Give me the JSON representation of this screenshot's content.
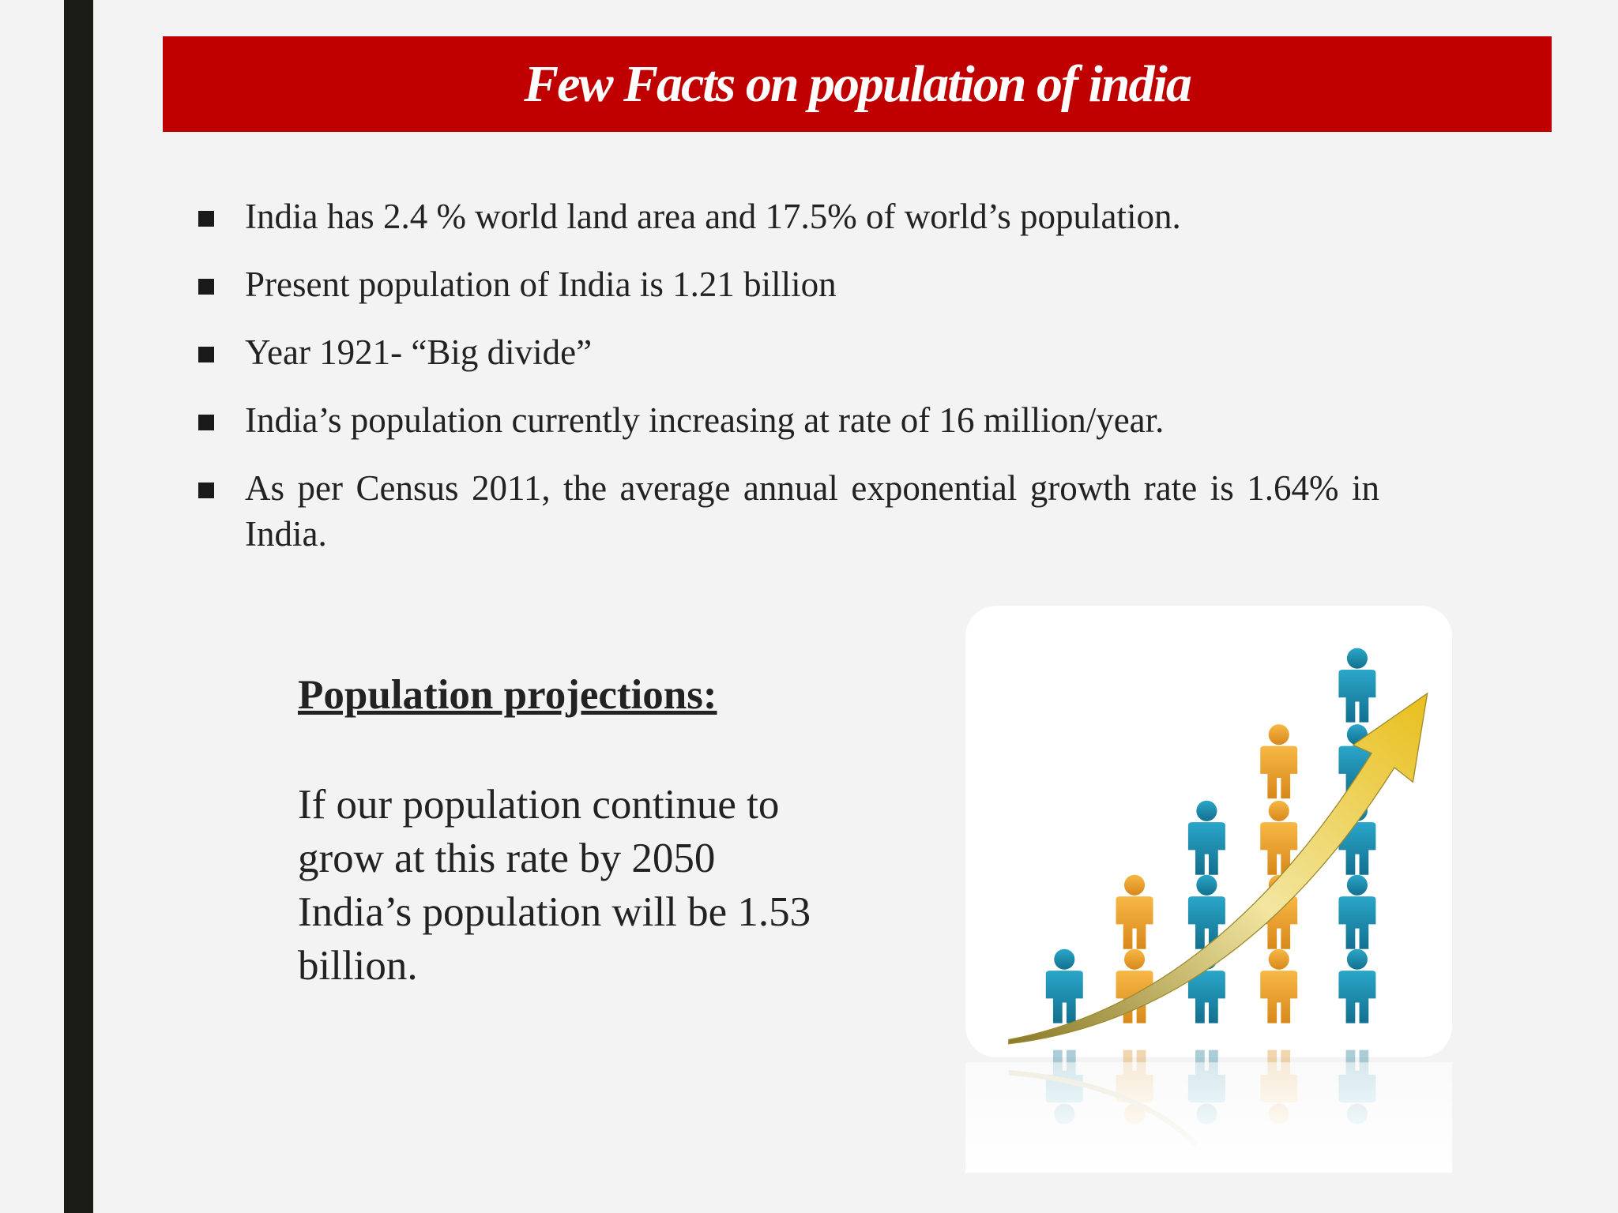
{
  "header": {
    "title": "Few Facts on population of india"
  },
  "bullets": [
    "India has 2.4 % world land area and 17.5% of world’s population.",
    "Present population of India is 1.21 billion",
    "Year 1921- “Big divide”",
    "India’s population currently increasing at rate of 16 million/year.",
    "As per Census 2011, the average annual exponential growth rate is 1.64% in India."
  ],
  "projections": {
    "heading": "Population projections:",
    "lines": [
      "If our population continue to",
      "grow at this rate by 2050",
      "India’s population will be 1.53",
      "billion."
    ]
  }
}
